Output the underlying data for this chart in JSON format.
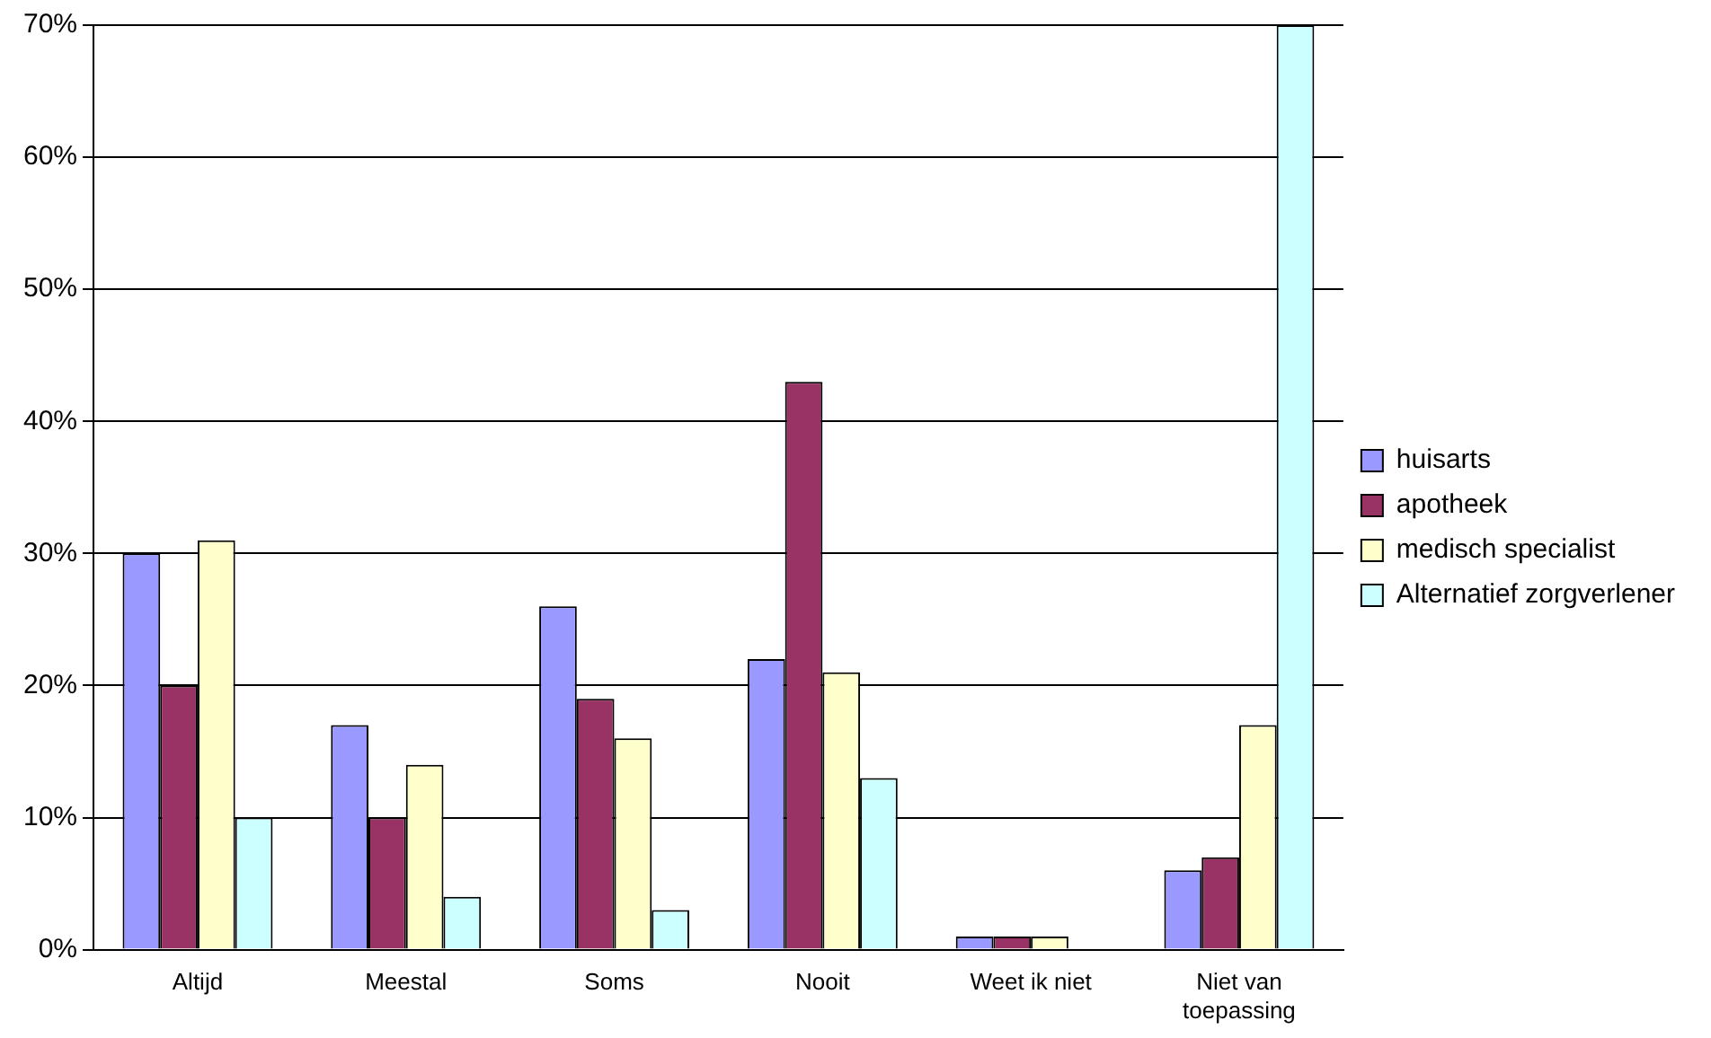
{
  "chart_data": {
    "type": "bar",
    "categories": [
      "Altijd",
      "Meestal",
      "Soms",
      "Nooit",
      "Weet ik niet",
      "Niet van toepassing"
    ],
    "series": [
      {
        "name": "huisarts",
        "color": "#9999ff",
        "values": [
          30,
          17,
          26,
          22,
          1,
          6
        ]
      },
      {
        "name": "apotheek",
        "color": "#993366",
        "values": [
          20,
          10,
          19,
          43,
          1,
          7
        ]
      },
      {
        "name": "medisch specialist",
        "color": "#ffffcc",
        "values": [
          31,
          14,
          16,
          21,
          1,
          17
        ]
      },
      {
        "name": "Alternatief zorgverlener",
        "color": "#ccffff",
        "values": [
          10,
          4,
          3,
          13,
          0,
          70
        ]
      }
    ],
    "ylim": [
      0,
      70
    ],
    "yticks": [
      {
        "value": 0,
        "label": "0%"
      },
      {
        "value": 10,
        "label": "10%"
      },
      {
        "value": 20,
        "label": "20%"
      },
      {
        "value": 30,
        "label": "30%"
      },
      {
        "value": 40,
        "label": "40%"
      },
      {
        "value": 50,
        "label": "50%"
      },
      {
        "value": 60,
        "label": "60%"
      },
      {
        "value": 70,
        "label": "70%"
      }
    ],
    "grid": "y",
    "legend": "right"
  }
}
